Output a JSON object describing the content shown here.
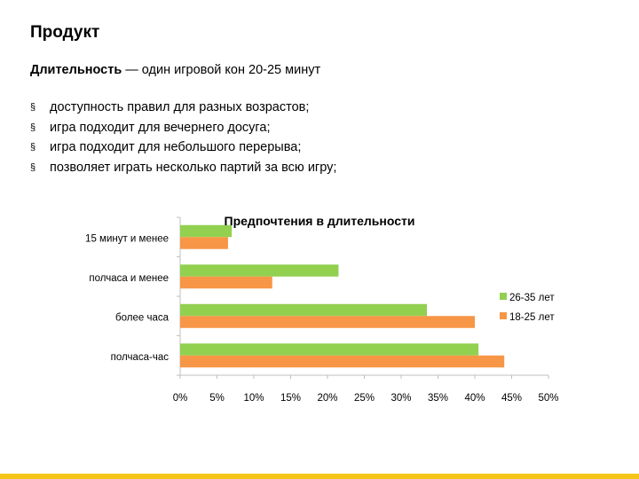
{
  "slide": {
    "title": "Продукт",
    "subtitle_bold": "Длительность",
    "subtitle_rest": " — один игровой кон 20-25 минут",
    "bullet_mark": "§",
    "bullets": [
      "доступность правил для разных возрастов;",
      "игра подходит для вечернего досуга;",
      "игра подходит для небольшого перерыва;",
      "позволяет играть несколько партий за всю игру;"
    ],
    "accent_color": "#f5c518"
  },
  "chart_data": {
    "type": "bar",
    "orientation": "horizontal",
    "title": "Предпочтения в длительности",
    "categories": [
      "15 минут и менее",
      "полчаса и менее",
      "более часа",
      "полчаса-час"
    ],
    "series": [
      {
        "name": "26-35 лет",
        "color": "#92d050",
        "values": [
          7,
          21.5,
          33.5,
          40.5
        ]
      },
      {
        "name": "18-25 лет",
        "color": "#f79646",
        "values": [
          6.5,
          12.5,
          40,
          44
        ]
      }
    ],
    "xlim": [
      0,
      50
    ],
    "xticks": [
      "0%",
      "5%",
      "10%",
      "15%",
      "20%",
      "25%",
      "30%",
      "35%",
      "40%",
      "45%",
      "50%"
    ],
    "legend_position": "right",
    "grid": false
  }
}
